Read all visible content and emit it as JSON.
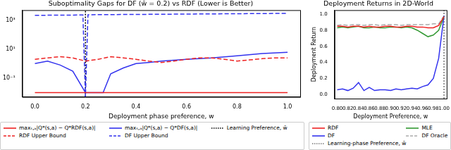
{
  "chart_data": [
    {
      "type": "line",
      "title": "Suboptimality Gaps for DF (w̄ = 0.2) vs RDF (Lower is Better)",
      "x_label": "Deployment phase preference, w",
      "xlim": [
        -0.05,
        1.05
      ],
      "xticks": [
        {
          "value": 0,
          "label": "0.0"
        },
        {
          "value": 0.2,
          "label": "0.2"
        },
        {
          "value": 0.4,
          "label": "0.4"
        },
        {
          "value": 0.6,
          "label": "0.6"
        },
        {
          "value": 0.8,
          "label": "0.8"
        },
        {
          "value": 1,
          "label": "1.0"
        }
      ],
      "ylim": [
        0.005,
        5000
      ],
      "yticks": [
        {
          "value": 0.1,
          "label": "10⁻¹"
        },
        {
          "value": 10,
          "label": "10¹"
        },
        {
          "value": 1000,
          "label": "10³"
        }
      ],
      "log": "y",
      "grid": false,
      "legend": "bottom",
      "series": [
        {
          "name": "maxₛ,ₐ|Q*(s,a) − Q*RDF(s,a)|",
          "color": "#ee2222",
          "line_style": "solid",
          "x": [
            0,
            1
          ],
          "values": [
            0.01,
            0.01
          ]
        },
        {
          "name": "RDF Upper Bound",
          "color": "#ee2222",
          "line_style": "dashed",
          "x": [
            0,
            0.05,
            0.1,
            0.15,
            0.2,
            0.25,
            0.3,
            0.35,
            0.4,
            0.45,
            0.5,
            0.55,
            0.6,
            0.65,
            0.7,
            0.75,
            0.8,
            0.85,
            0.9,
            0.95,
            1
          ],
          "values": [
            2,
            2.5,
            3,
            2.5,
            1.5,
            2,
            3,
            2.5,
            2,
            1.5,
            1.2,
            1.5,
            2,
            2.5,
            2.5,
            2,
            1.5,
            1.8,
            2.2,
            2.5,
            2.5
          ]
        },
        {
          "name": "maxₛ,ₐ|Q*(s,a) − Q*DF(s,a)|",
          "color": "#3333ee",
          "line_style": "solid",
          "x": [
            0,
            0.05,
            0.1,
            0.15,
            0.2,
            0.25,
            0.27,
            0.3,
            0.35,
            0.4,
            0.45,
            0.5,
            0.6,
            0.7,
            0.8,
            0.9,
            1
          ],
          "values": [
            1,
            1.5,
            0.8,
            0.3,
            0.01,
            0.01,
            0.01,
            0.2,
            0.5,
            1,
            1.2,
            1.5,
            2,
            2.5,
            3.5,
            5,
            6
          ]
        },
        {
          "name": "DF Upper Bound",
          "color": "#3333ee",
          "line_style": "dashed",
          "x": [
            0,
            0.19,
            0.2,
            0.21,
            0.5,
            1
          ],
          "values": [
            2200,
            2300,
            0.005,
            2400,
            2600,
            3000
          ]
        },
        {
          "name": "Learning Preference, w̄",
          "color": "#000000",
          "line_style": "dotted",
          "x": [
            0.2,
            0.2
          ],
          "values": [
            0.005,
            5000
          ]
        }
      ]
    },
    {
      "type": "line",
      "title": "Deployment Returns in 2D-World",
      "x_label": "Deployment Preference, w",
      "y_label": "Deployment Return",
      "xlim": [
        0.795,
        1.005
      ],
      "xticks": [
        {
          "value": 0.8,
          "label": "0.80"
        },
        {
          "value": 0.82,
          "label": "0.82"
        },
        {
          "value": 0.84,
          "label": "0.84"
        },
        {
          "value": 0.86,
          "label": "0.86"
        },
        {
          "value": 0.88,
          "label": "0.88"
        },
        {
          "value": 0.9,
          "label": "0.90"
        },
        {
          "value": 0.92,
          "label": "0.92"
        },
        {
          "value": 0.94,
          "label": "0.94"
        },
        {
          "value": 0.96,
          "label": "0.96"
        },
        {
          "value": 0.98,
          "label": "0.98"
        },
        {
          "value": 1,
          "label": "1.00"
        }
      ],
      "ylim": [
        -0.05,
        1.05
      ],
      "yticks": [
        {
          "value": 0,
          "label": "0.0"
        },
        {
          "value": 0.2,
          "label": "0.2"
        },
        {
          "value": 0.4,
          "label": "0.4"
        },
        {
          "value": 0.6,
          "label": "0.6"
        },
        {
          "value": 0.8,
          "label": "0.8"
        },
        {
          "value": 1,
          "label": "1.0"
        }
      ],
      "grid": false,
      "legend": "bottom",
      "series": [
        {
          "name": "RDF",
          "color": "#ee2222",
          "line_style": "solid",
          "x": [
            0.8,
            0.81,
            0.82,
            0.83,
            0.84,
            0.85,
            0.86,
            0.87,
            0.88,
            0.89,
            0.9,
            0.91,
            0.92,
            0.93,
            0.94,
            0.95,
            0.96,
            0.97,
            0.98,
            0.99,
            1
          ],
          "values": [
            0.85,
            0.85,
            0.84,
            0.85,
            0.85,
            0.84,
            0.85,
            0.84,
            0.84,
            0.85,
            0.85,
            0.84,
            0.84,
            0.85,
            0.85,
            0.84,
            0.84,
            0.83,
            0.83,
            0.86,
            0.97
          ]
        },
        {
          "name": "MLE",
          "color": "#339933",
          "line_style": "solid",
          "x": [
            0.8,
            0.81,
            0.82,
            0.83,
            0.84,
            0.85,
            0.86,
            0.87,
            0.88,
            0.89,
            0.9,
            0.91,
            0.92,
            0.93,
            0.94,
            0.95,
            0.96,
            0.97,
            0.98,
            0.99,
            1
          ],
          "values": [
            0.83,
            0.84,
            0.83,
            0.84,
            0.85,
            0.83,
            0.83,
            0.84,
            0.83,
            0.83,
            0.84,
            0.84,
            0.83,
            0.84,
            0.83,
            0.8,
            0.76,
            0.72,
            0.74,
            0.8,
            0.97
          ]
        },
        {
          "name": "DF",
          "color": "#3333ee",
          "line_style": "solid",
          "x": [
            0.8,
            0.81,
            0.82,
            0.83,
            0.84,
            0.85,
            0.86,
            0.87,
            0.88,
            0.89,
            0.9,
            0.91,
            0.92,
            0.93,
            0.94,
            0.95,
            0.96,
            0.97,
            0.98,
            0.99,
            1
          ],
          "values": [
            0.06,
            0.07,
            0.05,
            0.08,
            0.15,
            0.05,
            0.09,
            0.05,
            0.06,
            0.06,
            0.05,
            0.07,
            0.06,
            0.07,
            0.08,
            0.07,
            0.1,
            0.12,
            0.2,
            0.45,
            0.98
          ]
        },
        {
          "name": "DF Oracle",
          "color": "#aaaaaa",
          "line_style": "dashed",
          "x": [
            0.8,
            0.81,
            0.82,
            0.83,
            0.84,
            0.85,
            0.86,
            0.87,
            0.88,
            0.89,
            0.9,
            0.91,
            0.92,
            0.93,
            0.94,
            0.95,
            0.96,
            0.97,
            0.98,
            0.99,
            1
          ],
          "values": [
            0.86,
            0.87,
            0.86,
            0.87,
            0.87,
            0.86,
            0.87,
            0.87,
            0.86,
            0.87,
            0.87,
            0.87,
            0.86,
            0.87,
            0.87,
            0.87,
            0.87,
            0.87,
            0.88,
            0.88,
            0.98
          ]
        },
        {
          "name": "Learning-phase Preference, w̄",
          "color": "#777777",
          "line_style": "dotted",
          "x": [
            1,
            1
          ],
          "values": [
            -0.05,
            1.05
          ]
        }
      ]
    }
  ]
}
